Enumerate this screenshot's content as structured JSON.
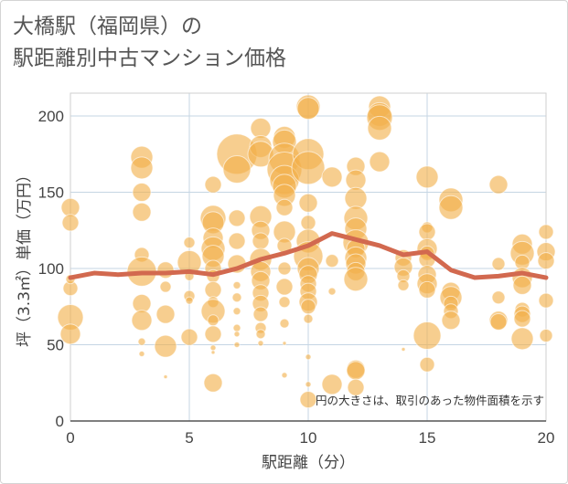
{
  "title": {
    "line1": "大橋駅（福岡県）の",
    "line2": "駅距離別中古マンション価格"
  },
  "colors": {
    "bubble": "#f2b04a",
    "trend": "#d2694f",
    "grid": "#c5d5e3",
    "axis": "#444444"
  },
  "chart_data": {
    "type": "scatter",
    "title": "大橋駅（福岡県）の駅距離別中古マンション価格",
    "xlabel": "駅距離（分）",
    "ylabel": "坪（3.3㎡）単価（万円）",
    "xlim": [
      0,
      20
    ],
    "ylim": [
      0,
      215
    ],
    "x_ticks": [
      "0",
      "5",
      "10",
      "15",
      "20"
    ],
    "y_ticks": [
      "0",
      "50",
      "100",
      "150",
      "200"
    ],
    "note": "円の大きさは、取引のあった物件面積を示す",
    "grid": true,
    "bubble_size_meaning": "取引のあった物件面積",
    "series": [
      {
        "type": "bubble",
        "points": [
          [
            0,
            140,
            10
          ],
          [
            0,
            130,
            9
          ],
          [
            0,
            87,
            8
          ],
          [
            0,
            68,
            14
          ],
          [
            0,
            57,
            11
          ],
          [
            0,
            93,
            5
          ],
          [
            3,
            173,
            12
          ],
          [
            3,
            166,
            12
          ],
          [
            3,
            150,
            10
          ],
          [
            3,
            137,
            10
          ],
          [
            3,
            109,
            8
          ],
          [
            3,
            98,
            16
          ],
          [
            3,
            77,
            10
          ],
          [
            3,
            66,
            11
          ],
          [
            3,
            52,
            4
          ],
          [
            3,
            44,
            3
          ],
          [
            4,
            99,
            9
          ],
          [
            4,
            88,
            6
          ],
          [
            4,
            70,
            10
          ],
          [
            4,
            49,
            12
          ],
          [
            4,
            29,
            2
          ],
          [
            5,
            117,
            6
          ],
          [
            5,
            104,
            13
          ],
          [
            5,
            95,
            5
          ],
          [
            5,
            82,
            6
          ],
          [
            5,
            79,
            4
          ],
          [
            5,
            55,
            9
          ],
          [
            6,
            155,
            9
          ],
          [
            6,
            133,
            14
          ],
          [
            6,
            130,
            12
          ],
          [
            6,
            120,
            11
          ],
          [
            6,
            113,
            13
          ],
          [
            6,
            108,
            12
          ],
          [
            6,
            100,
            9
          ],
          [
            6,
            95,
            7
          ],
          [
            6,
            86,
            9
          ],
          [
            6,
            78,
            6
          ],
          [
            6,
            72,
            13
          ],
          [
            6,
            66,
            6
          ],
          [
            6,
            57,
            9
          ],
          [
            6,
            48,
            3
          ],
          [
            6,
            45,
            2
          ],
          [
            6,
            25,
            10
          ],
          [
            7,
            175,
            22
          ],
          [
            7,
            165,
            15
          ],
          [
            7,
            133,
            9
          ],
          [
            7,
            118,
            9
          ],
          [
            7,
            103,
            10
          ],
          [
            7,
            89,
            4
          ],
          [
            7,
            81,
            5
          ],
          [
            7,
            72,
            4
          ],
          [
            7,
            61,
            4
          ],
          [
            7,
            57,
            3
          ],
          [
            7,
            50,
            3
          ],
          [
            8,
            192,
            11
          ],
          [
            8,
            180,
            12
          ],
          [
            8,
            175,
            14
          ],
          [
            8,
            134,
            12
          ],
          [
            8,
            125,
            10
          ],
          [
            8,
            118,
            9
          ],
          [
            8,
            106,
            12
          ],
          [
            8,
            98,
            11
          ],
          [
            8,
            92,
            10
          ],
          [
            8,
            84,
            9
          ],
          [
            8,
            77,
            9
          ],
          [
            8,
            70,
            8
          ],
          [
            8,
            61,
            6
          ],
          [
            8,
            57,
            5
          ],
          [
            8,
            51,
            3
          ],
          [
            9,
            186,
            12
          ],
          [
            9,
            183,
            13
          ],
          [
            9,
            172,
            17
          ],
          [
            9,
            165,
            19
          ],
          [
            9,
            158,
            16
          ],
          [
            9,
            154,
            13
          ],
          [
            9,
            148,
            12
          ],
          [
            9,
            140,
            9
          ],
          [
            9,
            124,
            12
          ],
          [
            9,
            115,
            8
          ],
          [
            9,
            100,
            7
          ],
          [
            9,
            88,
            9
          ],
          [
            9,
            78,
            6
          ],
          [
            9,
            64,
            5
          ],
          [
            9,
            51,
            2
          ],
          [
            9,
            30,
            3
          ],
          [
            10,
            206,
            13
          ],
          [
            10,
            205,
            12
          ],
          [
            10,
            175,
            17
          ],
          [
            10,
            166,
            18
          ],
          [
            10,
            143,
            10
          ],
          [
            10,
            130,
            8
          ],
          [
            10,
            118,
            13
          ],
          [
            10,
            108,
            16
          ],
          [
            10,
            100,
            12
          ],
          [
            10,
            96,
            10
          ],
          [
            10,
            90,
            9
          ],
          [
            10,
            85,
            9
          ],
          [
            10,
            78,
            10
          ],
          [
            10,
            75,
            8
          ],
          [
            10,
            67,
            5
          ],
          [
            10,
            42,
            3
          ],
          [
            10,
            24,
            3
          ],
          [
            10,
            14,
            9
          ],
          [
            11,
            160,
            11
          ],
          [
            11,
            105,
            7
          ],
          [
            11,
            85,
            4
          ],
          [
            11,
            24,
            11
          ],
          [
            12,
            167,
            10
          ],
          [
            12,
            158,
            11
          ],
          [
            12,
            146,
            12
          ],
          [
            12,
            133,
            13
          ],
          [
            12,
            126,
            12
          ],
          [
            12,
            117,
            14
          ],
          [
            12,
            113,
            10
          ],
          [
            12,
            107,
            12
          ],
          [
            12,
            103,
            11
          ],
          [
            12,
            98,
            10
          ],
          [
            12,
            93,
            13
          ],
          [
            12,
            34,
            10
          ],
          [
            12,
            33,
            10
          ],
          [
            12,
            22,
            9
          ],
          [
            13,
            206,
            12
          ],
          [
            13,
            201,
            13
          ],
          [
            13,
            199,
            14
          ],
          [
            13,
            192,
            13
          ],
          [
            13,
            170,
            11
          ],
          [
            14,
            107,
            9
          ],
          [
            14,
            101,
            10
          ],
          [
            14,
            95,
            7
          ],
          [
            14,
            89,
            6
          ],
          [
            14,
            47,
            2
          ],
          [
            15,
            160,
            12
          ],
          [
            15,
            127,
            6
          ],
          [
            15,
            124,
            9
          ],
          [
            15,
            113,
            11
          ],
          [
            15,
            110,
            8
          ],
          [
            15,
            106,
            9
          ],
          [
            15,
            96,
            10
          ],
          [
            15,
            90,
            11
          ],
          [
            15,
            86,
            9
          ],
          [
            15,
            56,
            15
          ],
          [
            15,
            37,
            8
          ],
          [
            16,
            145,
            13
          ],
          [
            16,
            140,
            13
          ],
          [
            16,
            85,
            10
          ],
          [
            16,
            81,
            12
          ],
          [
            16,
            77,
            8
          ],
          [
            16,
            72,
            8
          ],
          [
            16,
            66,
            10
          ],
          [
            18,
            155,
            10
          ],
          [
            18,
            103,
            7
          ],
          [
            18,
            81,
            7
          ],
          [
            18,
            66,
            10
          ],
          [
            18,
            65,
            9
          ],
          [
            19,
            116,
            11
          ],
          [
            19,
            110,
            13
          ],
          [
            19,
            104,
            8
          ],
          [
            19,
            94,
            11
          ],
          [
            19,
            89,
            10
          ],
          [
            19,
            73,
            8
          ],
          [
            19,
            70,
            9
          ],
          [
            19,
            67,
            9
          ],
          [
            19,
            54,
            12
          ],
          [
            20,
            124,
            8
          ],
          [
            20,
            111,
            10
          ],
          [
            20,
            105,
            9
          ],
          [
            20,
            79,
            8
          ],
          [
            20,
            56,
            7
          ]
        ]
      },
      {
        "type": "line",
        "x": [
          0,
          1,
          2,
          3,
          4,
          5,
          6,
          7,
          8,
          9,
          10,
          11,
          12,
          13,
          14,
          15,
          16,
          17,
          18,
          19,
          20
        ],
        "y": [
          94,
          97,
          96,
          97,
          97,
          98,
          96,
          100,
          106,
          110,
          115,
          123,
          119,
          115,
          109,
          111,
          99,
          94,
          95,
          97,
          94
        ]
      }
    ]
  }
}
